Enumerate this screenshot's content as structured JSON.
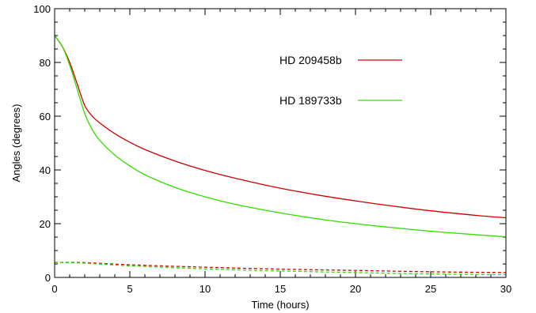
{
  "chart_data": {
    "type": "line",
    "title": "",
    "xlabel": "Time (hours)",
    "ylabel": "Angles (degrees)",
    "xlim": [
      0,
      30
    ],
    "ylim": [
      0,
      100
    ],
    "xticks": [
      0,
      5,
      10,
      15,
      20,
      25,
      30
    ],
    "yticks": [
      0,
      20,
      40,
      60,
      80,
      100
    ],
    "grid": false,
    "legend": "top-right",
    "series": [
      {
        "name": "HD 209458b",
        "color": "#cc0000",
        "style": "solid",
        "x": [
          0,
          0.5,
          1,
          1.5,
          2,
          2.5,
          3,
          4,
          5,
          6,
          8,
          10,
          12,
          15,
          18,
          20,
          22,
          25,
          28,
          30
        ],
        "y": [
          90,
          86,
          80,
          72,
          64,
          60,
          57.5,
          53.5,
          50.3,
          47.6,
          43.3,
          39.8,
          36.9,
          33.2,
          30.2,
          28.5,
          26.9,
          24.8,
          23.1,
          22.2
        ]
      },
      {
        "name": "HD 189733b",
        "color": "#33dd00",
        "style": "solid",
        "x": [
          0,
          0.5,
          1,
          1.5,
          2,
          2.5,
          3,
          4,
          5,
          6,
          8,
          10,
          12,
          15,
          18,
          20,
          22,
          25,
          28,
          30
        ],
        "y": [
          90,
          86,
          79,
          70,
          61,
          55,
          51,
          45.5,
          41.5,
          38.2,
          33.5,
          30,
          27.2,
          24,
          21.4,
          20,
          18.8,
          17.2,
          15.9,
          15.1
        ]
      },
      {
        "color": "#cc0000",
        "style": "dashed",
        "x": [
          0,
          2,
          5,
          10,
          15,
          20,
          25,
          30
        ],
        "y": [
          5.6,
          5.5,
          4.7,
          3.8,
          3.1,
          2.6,
          2.1,
          1.8
        ]
      },
      {
        "color": "#33dd00",
        "style": "dashed",
        "x": [
          0,
          2,
          5,
          10,
          15,
          20,
          25,
          30
        ],
        "y": [
          5.6,
          5.3,
          4.3,
          3.2,
          2.4,
          1.8,
          1.3,
          1.0
        ]
      }
    ]
  }
}
